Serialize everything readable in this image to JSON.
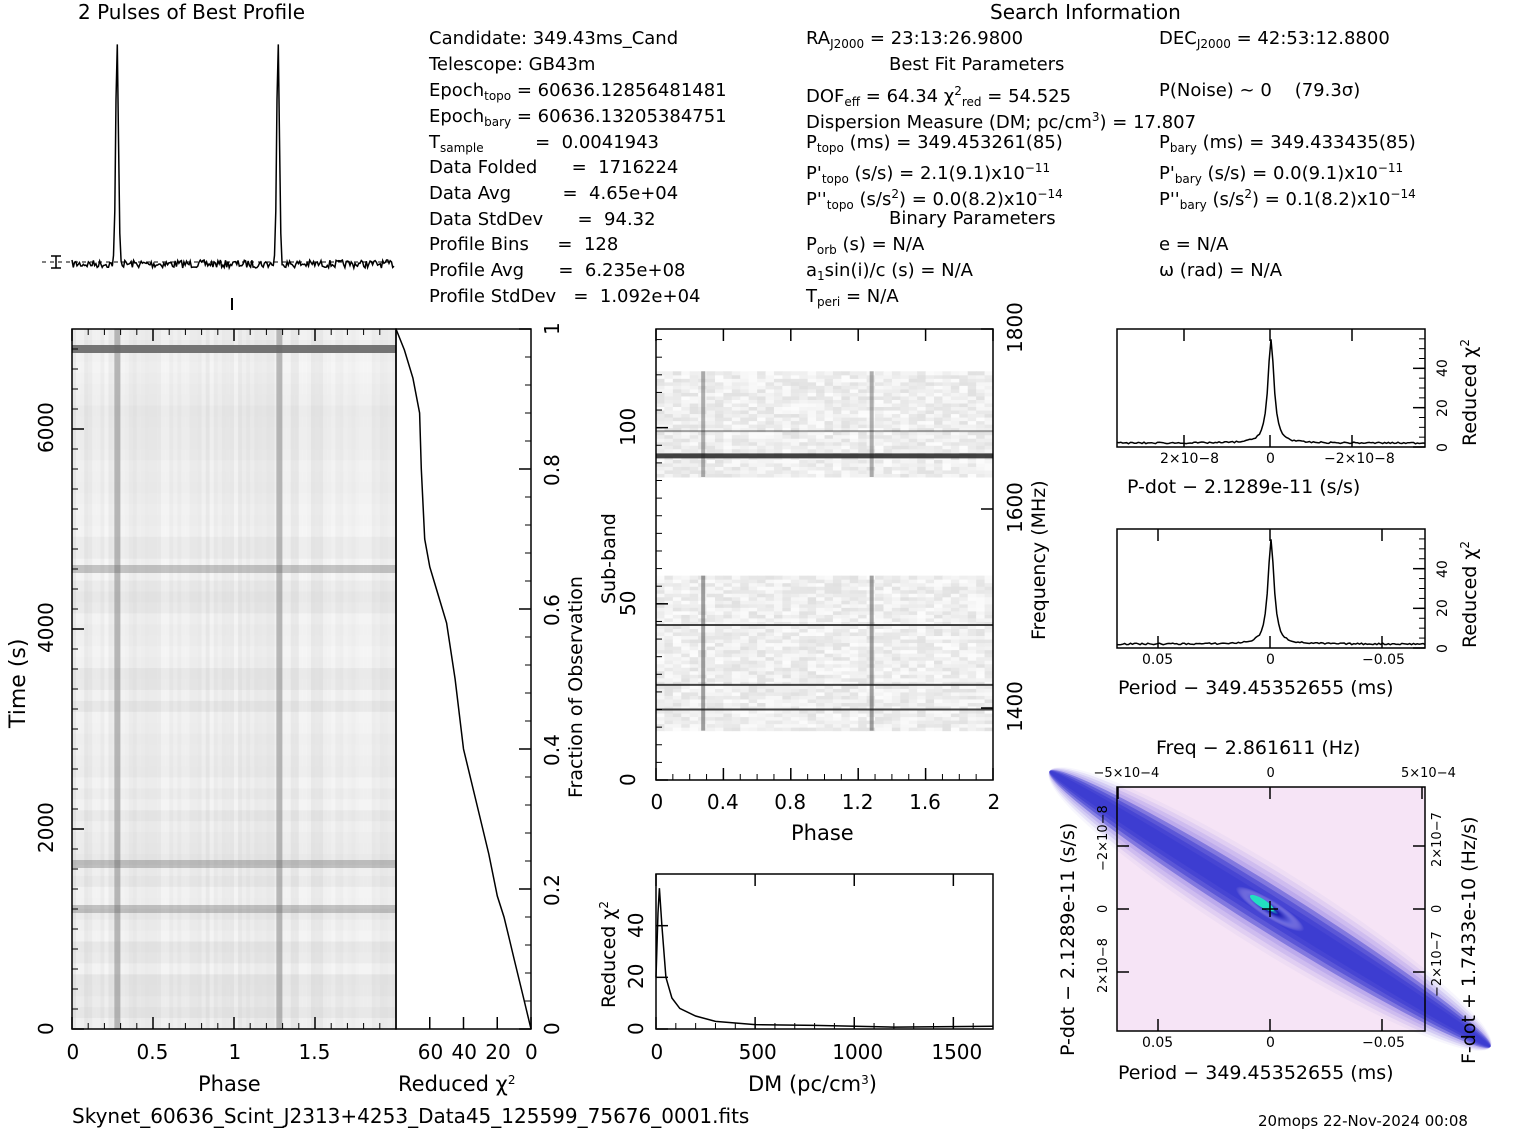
{
  "header": {
    "profile_title": "2 Pulses of Best Profile",
    "search_title": "Search Information",
    "best_fit_title": "Best Fit Parameters",
    "binary_title": "Binary Parameters"
  },
  "info_left": [
    {
      "key": "Candidate:  349.43ms_Cand"
    },
    {
      "key": "Telescope:  GB43m"
    },
    {
      "k1": "Epoch",
      "sub": "topo",
      "k2": " = 60636.12856481481"
    },
    {
      "k1": "Epoch",
      "sub": "bary",
      "k2": " = 60636.13205384751"
    },
    {
      "k1": "T",
      "sub": "sample",
      "k2": "         =  0.0041943"
    },
    {
      "key": "Data Folded      =  1716224"
    },
    {
      "key": "Data Avg         =  4.65e+04"
    },
    {
      "key": "Data StdDev      =  94.32"
    },
    {
      "key": "Profile Bins     =  128"
    },
    {
      "key": "Profile Avg      =  6.235e+08"
    },
    {
      "key": "Profile StdDev   =  1.092e+04"
    }
  ],
  "info_mid": {
    "ra": "RA",
    "ra_sub": "J2000",
    "ra_val": " = 23:13:26.9800",
    "dof": "DOF",
    "dof_sub": "eff",
    "dof_val": " = 64.34  χ",
    "chi_sup": "2",
    "chi_sub": "red",
    "chi_val": " = 54.525",
    "dm_line": "Dispersion Measure (DM; pc/cm",
    "dm_sup": "3",
    "dm_val": ") = 17.807",
    "ptopo": "P",
    "ptopo_sub": "topo",
    "ptopo_val": " (ms) =  349.453261(85)",
    "pdtopo": "P'",
    "pdtopo_sub": "topo",
    "pdtopo_val": " (s/s) =  2.1(9.1)x10",
    "pdtopo_exp": "−11",
    "pddtopo": "P''",
    "pddtopo_sub": "topo",
    "pddtopo_val": " (s/s",
    "pddtopo_sup": "2",
    "pddtopo_val2": ") = 0.0(8.2)x10",
    "pddtopo_exp": "−14",
    "porb": "P",
    "porb_sub": "orb",
    "porb_val": " (s) = N/A",
    "a1": "a",
    "a1_sub": "1",
    "a1_val": "sin(i)/c (s) = N/A",
    "tperi": "T",
    "tperi_sub": "peri",
    "tperi_val": " = N/A"
  },
  "info_right": {
    "dec": "DEC",
    "dec_sub": "J2000",
    "dec_val": " = 42:53:12.8800",
    "pnoise": "P(Noise) ~ 0    (79.3σ)",
    "pbary": "P",
    "pbary_sub": "bary",
    "pbary_val": " (ms) =  349.433435(85)",
    "pdbary": "P'",
    "pdbary_sub": "bary",
    "pdbary_val": " (s/s) = 0.0(9.1)x10",
    "pdbary_exp": "−11",
    "pddbary": "P''",
    "pddbary_sub": "bary",
    "pddbary_val": " (s/s",
    "pddbary_sup": "2",
    "pddbary_val2": ") =  0.1(8.2)x10",
    "pddbary_exp": "−14",
    "e_val": "e = N/A",
    "omega_val": "ω (rad) = N/A"
  },
  "axes": {
    "time_label": "Time (s)",
    "phase_label": "Phase",
    "redchi_label": "Reduced χ",
    "redchi_sup": "2",
    "frac_label": "Fraction of Observation",
    "subband_label": "Sub-band",
    "freq_label": "Frequency (MHz)",
    "dm_label": "DM (pc/cm",
    "dm_sup": "3",
    "dm_close": ")",
    "pdot_label": "P-dot − 2.1289e-11 (s/s)",
    "period_label": "Period − 349.45352655 (ms)",
    "freq_top_label": "Freq − 2.861611 (Hz)",
    "fdot_label": "F-dot + 1.7433e-10 (Hz/s)",
    "pdot_left_label": "P-dot − 2.1289e-11 (s/s)"
  },
  "footer": {
    "filename": "Skynet_60636_Scint_J2313+4253_Data45_125599_75676_0001.fits",
    "stamp": "20mops 22-Nov-2024 00:08"
  },
  "colors": {
    "ink": "#000000",
    "dashed": "#000000",
    "ppdot_light": "#f4dcf4",
    "ppdot_mid": "#6a6ae0",
    "ppdot_dark": "#1a1ab0",
    "ppdot_peak": "#22e0c0"
  },
  "chart_data": [
    {
      "type": "line",
      "title": "2 Pulses of Best Profile",
      "x": [
        0,
        0.27,
        0.28,
        0.29,
        0.3,
        1.0,
        1.27,
        1.28,
        1.29,
        1.3,
        2.0
      ],
      "values": [
        0,
        0,
        0.6,
        1.0,
        0,
        0,
        0,
        0.6,
        1.0,
        0,
        0
      ]
    },
    {
      "type": "heatmap",
      "xlabel": "Phase",
      "ylabel": "Time (s)",
      "xlim": [
        0,
        2
      ],
      "ylim": [
        0,
        7000
      ],
      "x_ticks": [
        "0",
        "0.5",
        "1",
        "1.5"
      ],
      "y_ticks": [
        "0",
        "2000",
        "4000",
        "6000"
      ],
      "pulse_phases": [
        0.28,
        1.28
      ],
      "bright_rows_s": [
        6800,
        4600,
        1650,
        1200
      ]
    },
    {
      "type": "line",
      "xlabel": "Reduced χ2",
      "ylabel": "Fraction of Observation",
      "x_ticks": [
        "60",
        "40",
        "20",
        "0"
      ],
      "y_ticks": [
        "0",
        "0.2",
        "0.4",
        "0.6",
        "0.8",
        "1"
      ],
      "xlim": [
        80,
        0
      ],
      "ylim": [
        0,
        1
      ],
      "x": [
        0,
        5,
        10,
        13,
        16,
        20,
        25,
        32,
        40,
        45,
        50,
        55,
        60,
        63,
        65,
        66,
        70,
        75,
        80
      ],
      "y": [
        0.0,
        0.05,
        0.1,
        0.13,
        0.16,
        0.19,
        0.25,
        0.32,
        0.4,
        0.5,
        0.58,
        0.62,
        0.66,
        0.7,
        0.8,
        0.88,
        0.93,
        0.97,
        1.0
      ]
    },
    {
      "type": "heatmap",
      "xlabel": "Phase",
      "ylabel": "Sub-band",
      "y2label": "Frequency (MHz)",
      "xlim": [
        0,
        2
      ],
      "ylim": [
        0,
        128
      ],
      "x_ticks": [
        "0",
        "0.4",
        "0.8",
        "1.2",
        "1.6",
        "2"
      ],
      "y_ticks": [
        "0",
        "50",
        "100"
      ],
      "y2_ticks": [
        "1400",
        "1600",
        "1800"
      ],
      "dark_rows": [
        20,
        27,
        44,
        92,
        99
      ]
    },
    {
      "type": "line",
      "xlabel": "DM (pc/cm3)",
      "ylabel": "Reduced χ2",
      "xlim": [
        0,
        1700
      ],
      "ylim": [
        0,
        60
      ],
      "x_ticks": [
        "0",
        "500",
        "1000",
        "1500"
      ],
      "y_ticks": [
        "0",
        "20",
        "40"
      ],
      "x": [
        0,
        10,
        17,
        30,
        50,
        80,
        120,
        200,
        300,
        500,
        800,
        1200,
        1700
      ],
      "y": [
        20,
        45,
        54.5,
        40,
        20,
        12,
        8,
        5,
        3,
        2,
        1.5,
        1,
        1
      ]
    },
    {
      "type": "line",
      "xlabel": "P-dot − 2.1289e-11 (s/s)",
      "ylabel": "Reduced χ2",
      "x_ticks": [
        "2×10−8",
        "0",
        "−2×10−8"
      ],
      "y_ticks": [
        "0",
        "20",
        "40"
      ],
      "peak": 54.5
    },
    {
      "type": "line",
      "xlabel": "Period − 349.45352655 (ms)",
      "ylabel": "Reduced χ2",
      "x_ticks": [
        "0.05",
        "0",
        "−0.05"
      ],
      "y_ticks": [
        "0",
        "20",
        "40"
      ],
      "peak": 54.5
    },
    {
      "type": "heatmap",
      "xlabel": "Period − 349.45352655 (ms)",
      "ylabel": "P-dot − 2.1289e-11 (s/s)",
      "x2label": "Freq − 2.861611 (Hz)",
      "y2label": "F-dot + 1.7433e-10 (Hz/s)",
      "x_ticks": [
        "0.05",
        "0",
        "−0.05"
      ],
      "x2_ticks": [
        "−5×10−4",
        "0",
        "5×10−4"
      ],
      "y_ticks": [
        "−2×10−8",
        "0",
        "2×10−8"
      ],
      "y2_ticks": [
        "2×10−7",
        "0",
        "−2×10−7"
      ]
    }
  ]
}
